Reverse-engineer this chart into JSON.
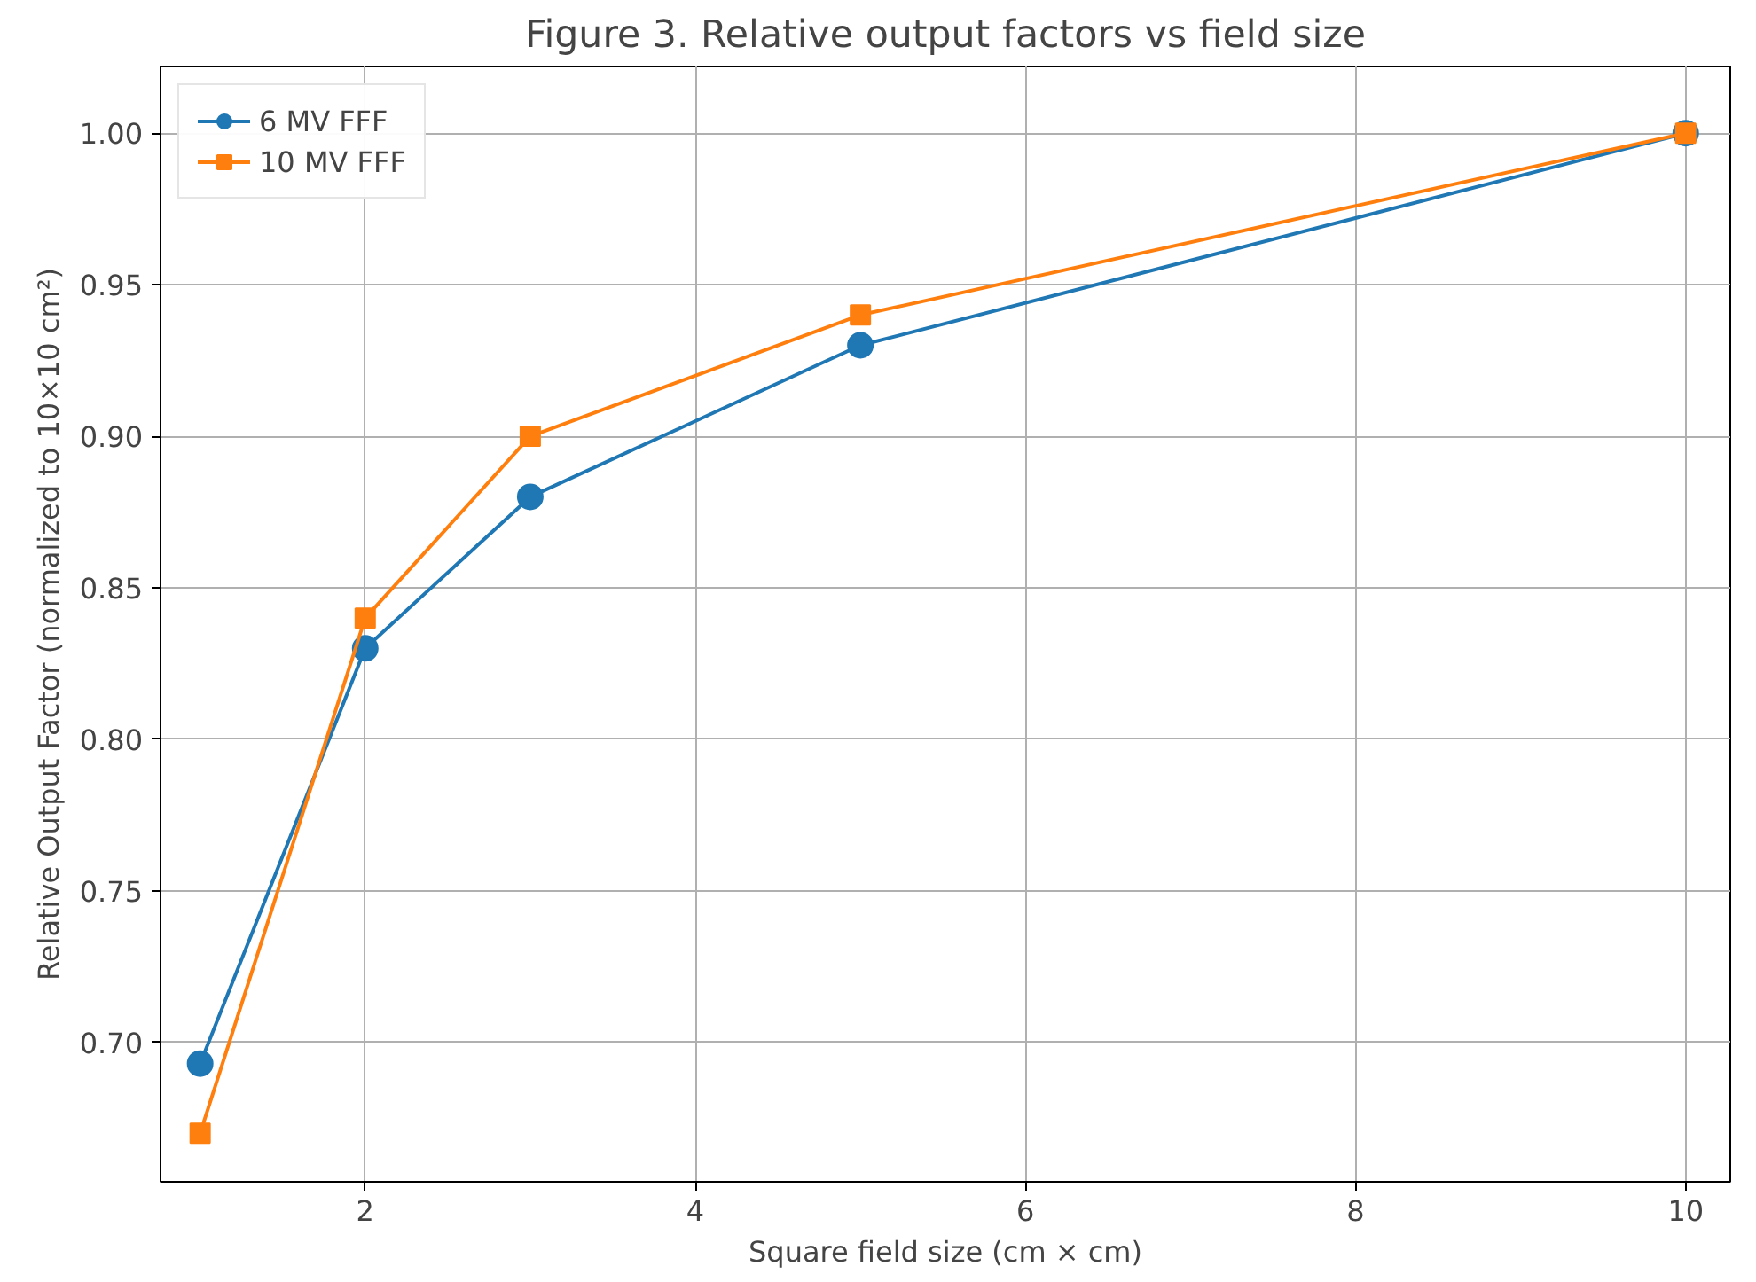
{
  "chart_data": {
    "type": "line",
    "title": "Figure 3. Relative output factors vs field size",
    "xlabel": "Square field size (cm × cm)",
    "ylabel": "Relative Output Factor (normalized to 10×10 cm²)",
    "x": [
      1,
      2,
      3,
      5,
      10
    ],
    "series": [
      {
        "name": "6 MV FFF",
        "color": "#1f77b4",
        "marker": "circle",
        "values": [
          0.693,
          0.83,
          0.88,
          0.93,
          1.0
        ]
      },
      {
        "name": "10 MV FFF",
        "color": "#ff7f0e",
        "marker": "square",
        "values": [
          0.67,
          0.84,
          0.9,
          0.94,
          1.0
        ]
      }
    ],
    "xlim": [
      0.76,
      10.27
    ],
    "ylim": [
      0.654,
      1.022
    ],
    "xticks": [
      2,
      4,
      6,
      8,
      10
    ],
    "yticks": [
      {
        "value": 0.7,
        "label": "0.70"
      },
      {
        "value": 0.75,
        "label": "0.75"
      },
      {
        "value": 0.8,
        "label": "0.80"
      },
      {
        "value": 0.85,
        "label": "0.85"
      },
      {
        "value": 0.9,
        "label": "0.90"
      },
      {
        "value": 0.95,
        "label": "0.95"
      },
      {
        "value": 1.0,
        "label": "1.00"
      }
    ],
    "grid": true,
    "legend": "top left",
    "line_style": "solid"
  }
}
